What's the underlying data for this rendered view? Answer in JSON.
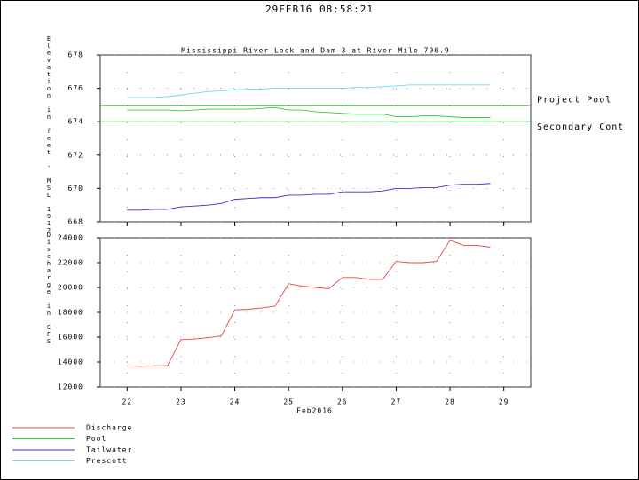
{
  "header": {
    "timestamp": "29FEB16  08:58:21"
  },
  "chart_data": [
    {
      "type": "line",
      "title": "Mississippi River Lock and Dam 3 at River Mile 796.9",
      "ylabel": "Elevation in feet - MSL 1912",
      "ylim": [
        668,
        678
      ],
      "yticks": [
        668,
        670,
        672,
        674,
        676,
        678
      ],
      "xlim": [
        21.5,
        29.5
      ],
      "xticks": [
        22,
        23,
        24,
        25,
        26,
        27,
        28,
        29
      ],
      "grid": true,
      "x": [
        22,
        22.25,
        22.5,
        22.75,
        23,
        23.25,
        23.5,
        23.75,
        24,
        24.25,
        24.5,
        24.75,
        25,
        25.25,
        25.5,
        25.75,
        26,
        26.25,
        26.5,
        26.75,
        27,
        27.25,
        27.5,
        27.75,
        28,
        28.25,
        28.5,
        28.75
      ],
      "reference_lines": [
        {
          "label": "Project Pool",
          "value": 675,
          "color": "#33cc33"
        },
        {
          "label": "Secondary Cont",
          "value": 674,
          "color": "#33cc33"
        }
      ],
      "series": [
        {
          "name": "Pool",
          "color": "#33cc33",
          "values": [
            674.7,
            674.7,
            674.7,
            674.7,
            674.65,
            674.7,
            674.75,
            674.75,
            674.75,
            674.75,
            674.8,
            674.85,
            674.7,
            674.7,
            674.6,
            674.55,
            674.5,
            674.45,
            674.45,
            674.45,
            674.3,
            674.3,
            674.35,
            674.35,
            674.3,
            674.25,
            674.25,
            674.25
          ]
        },
        {
          "name": "Tailwater",
          "color": "#3333cc",
          "values": [
            668.7,
            668.7,
            668.75,
            668.75,
            668.9,
            668.95,
            669.0,
            669.1,
            669.35,
            669.4,
            669.45,
            669.45,
            669.6,
            669.6,
            669.65,
            669.65,
            669.8,
            669.8,
            669.8,
            669.85,
            670.0,
            670.0,
            670.05,
            670.05,
            670.2,
            670.25,
            670.25,
            670.3
          ]
        },
        {
          "name": "Prescott",
          "color": "#66ddee",
          "values": [
            675.45,
            675.45,
            675.45,
            675.5,
            675.6,
            675.7,
            675.8,
            675.85,
            675.9,
            675.95,
            675.95,
            676.0,
            676.0,
            676.0,
            676.0,
            676.0,
            676.0,
            676.05,
            676.05,
            676.1,
            676.15,
            676.2,
            676.2,
            676.2,
            676.2,
            676.2,
            676.2,
            676.2
          ]
        }
      ]
    },
    {
      "type": "line",
      "ylabel": "Discharge in CFS",
      "xlabel": "Feb2016",
      "ylim": [
        12000,
        24000
      ],
      "yticks": [
        12000,
        14000,
        16000,
        18000,
        20000,
        22000,
        24000
      ],
      "xlim": [
        21.5,
        29.5
      ],
      "xticks": [
        22,
        23,
        24,
        25,
        26,
        27,
        28,
        29
      ],
      "grid": true,
      "x": [
        22,
        22.25,
        22.5,
        22.75,
        23,
        23.25,
        23.5,
        23.75,
        24,
        24.25,
        24.5,
        24.75,
        25,
        25.25,
        25.5,
        25.75,
        26,
        26.25,
        26.5,
        26.75,
        27,
        27.25,
        27.5,
        27.75,
        28,
        28.25,
        28.5,
        28.75
      ],
      "series": [
        {
          "name": "Discharge",
          "color": "#ee4444",
          "values": [
            13700,
            13650,
            13700,
            13700,
            15800,
            15850,
            15950,
            16100,
            18200,
            18250,
            18350,
            18500,
            20300,
            20100,
            20000,
            19900,
            20800,
            20800,
            20650,
            20650,
            22100,
            22000,
            22000,
            22100,
            23800,
            23400,
            23400,
            23250
          ]
        }
      ]
    }
  ]
}
